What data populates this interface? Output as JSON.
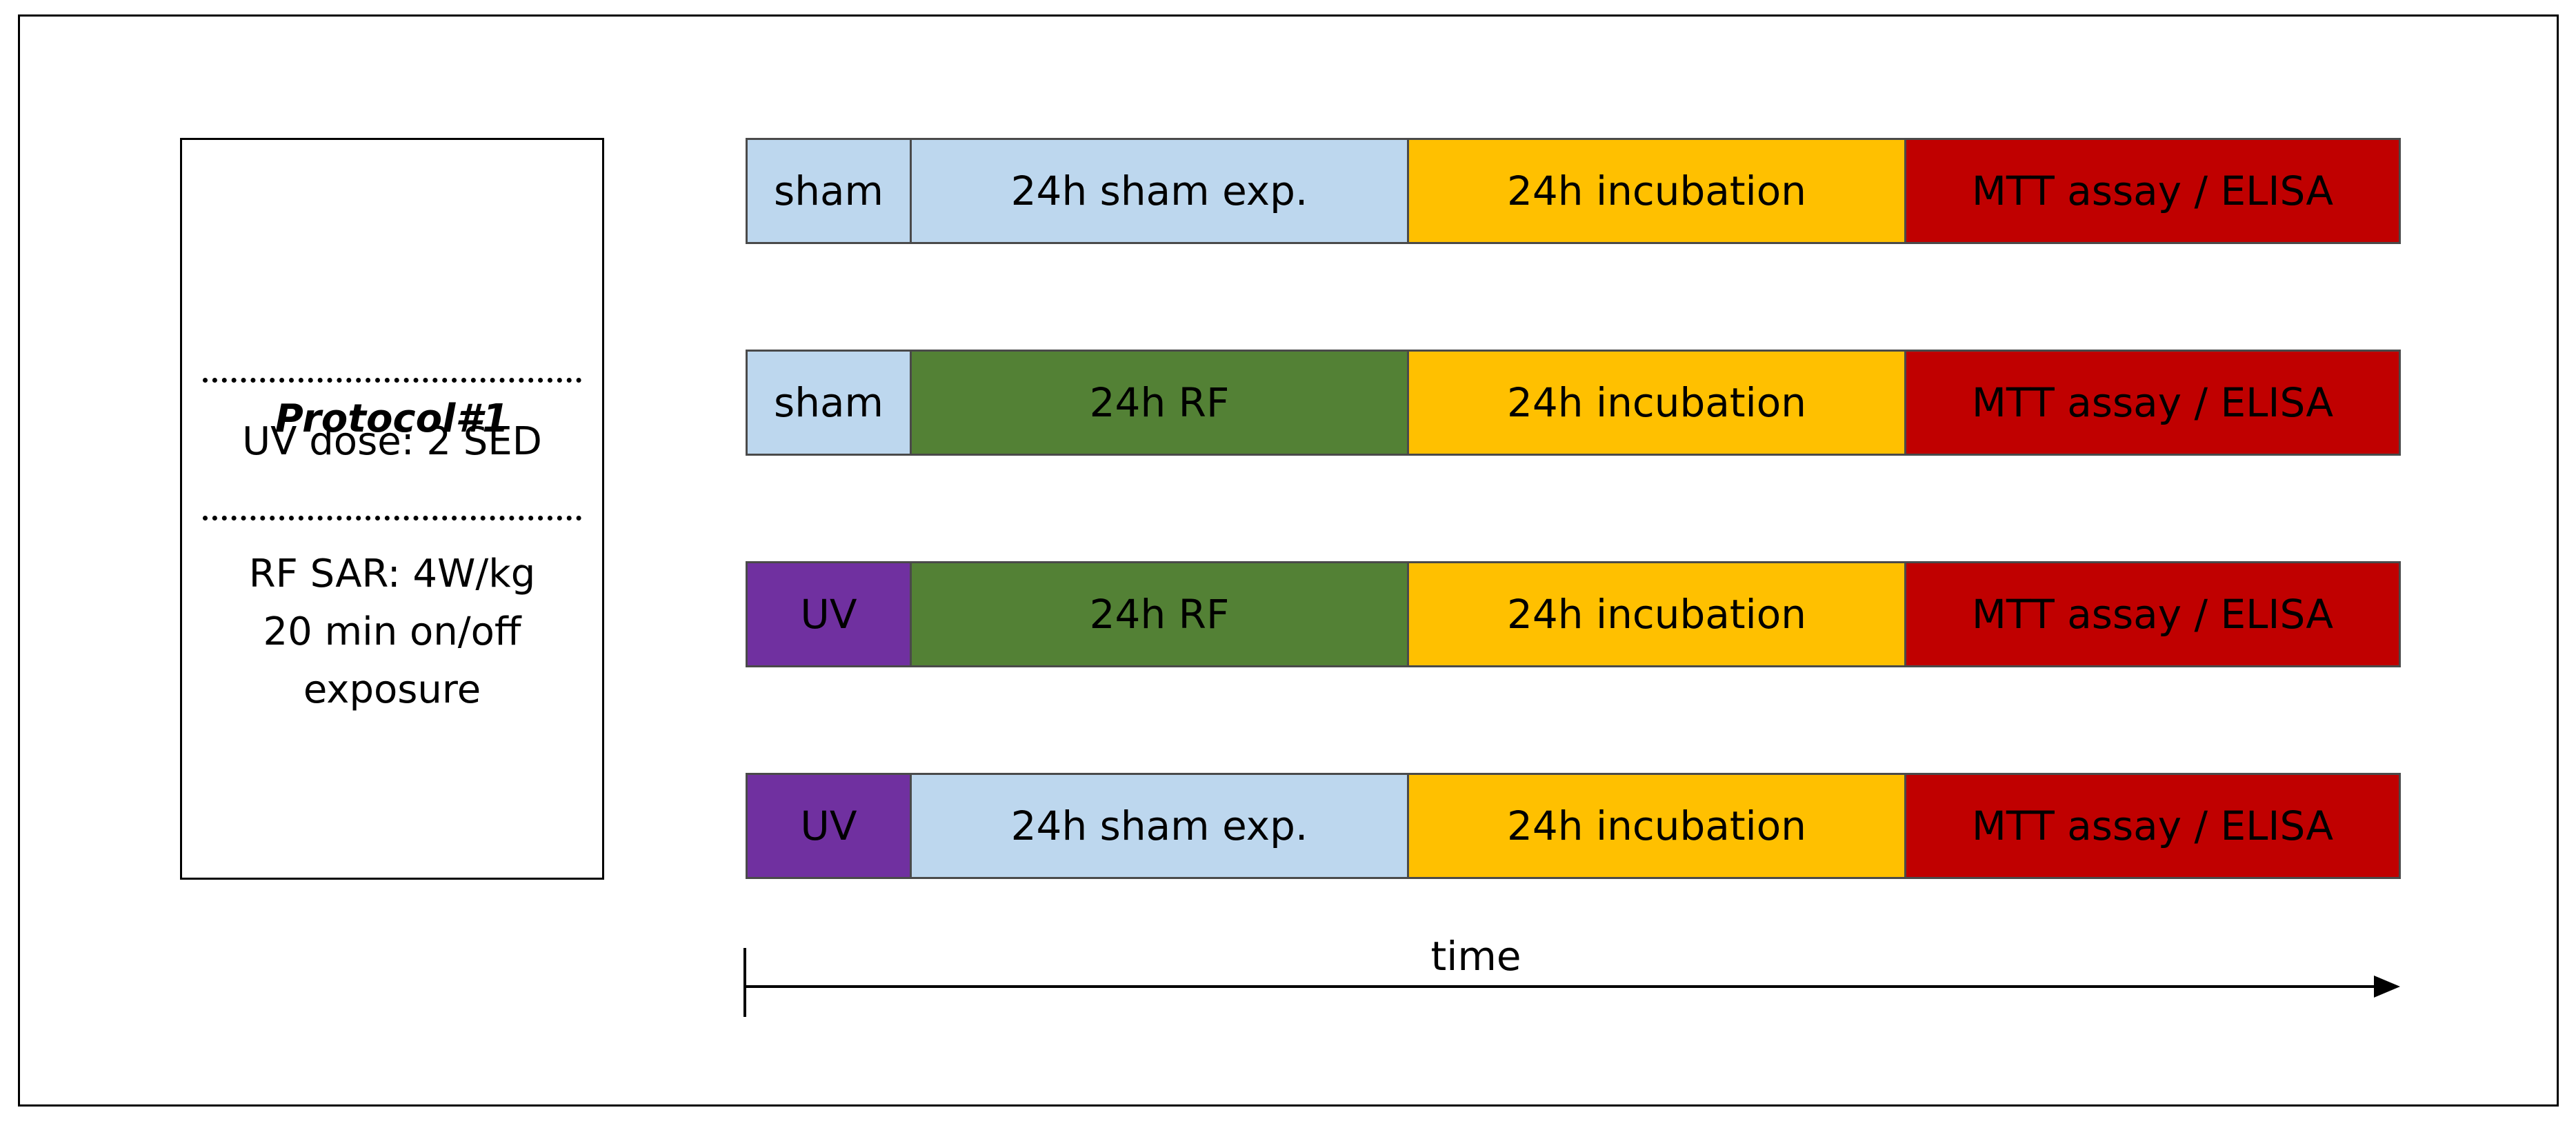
{
  "protocol_box": {
    "title": "Protocol#1",
    "uv_dose": "UV dose: 2 SED",
    "rf_line1": "RF SAR: 4W/kg",
    "rf_line2": "20 min on/off",
    "rf_line3": "exposure"
  },
  "colors": {
    "sham": "#bdd7ee",
    "rf": "#538135",
    "uv": "#7030a0",
    "incubation": "#ffc000",
    "assay": "#c00000"
  },
  "rows": [
    {
      "cells": [
        {
          "label": "sham",
          "color": "#bdd7ee"
        },
        {
          "label": "24h sham exp.",
          "color": "#bdd7ee"
        },
        {
          "label": "24h incubation",
          "color": "#ffc000"
        },
        {
          "label": "MTT assay / ELISA",
          "color": "#c00000"
        }
      ]
    },
    {
      "cells": [
        {
          "label": "sham",
          "color": "#bdd7ee"
        },
        {
          "label": "24h RF",
          "color": "#538135"
        },
        {
          "label": "24h incubation",
          "color": "#ffc000"
        },
        {
          "label": "MTT assay / ELISA",
          "color": "#c00000"
        }
      ]
    },
    {
      "cells": [
        {
          "label": "UV",
          "color": "#7030a0"
        },
        {
          "label": "24h RF",
          "color": "#538135"
        },
        {
          "label": "24h incubation",
          "color": "#ffc000"
        },
        {
          "label": "MTT assay / ELISA",
          "color": "#c00000"
        }
      ]
    },
    {
      "cells": [
        {
          "label": "UV",
          "color": "#7030a0"
        },
        {
          "label": "24h sham exp.",
          "color": "#bdd7ee"
        },
        {
          "label": "24h incubation",
          "color": "#ffc000"
        },
        {
          "label": "MTT assay / ELISA",
          "color": "#c00000"
        }
      ]
    }
  ],
  "time_axis": {
    "label": "time"
  }
}
